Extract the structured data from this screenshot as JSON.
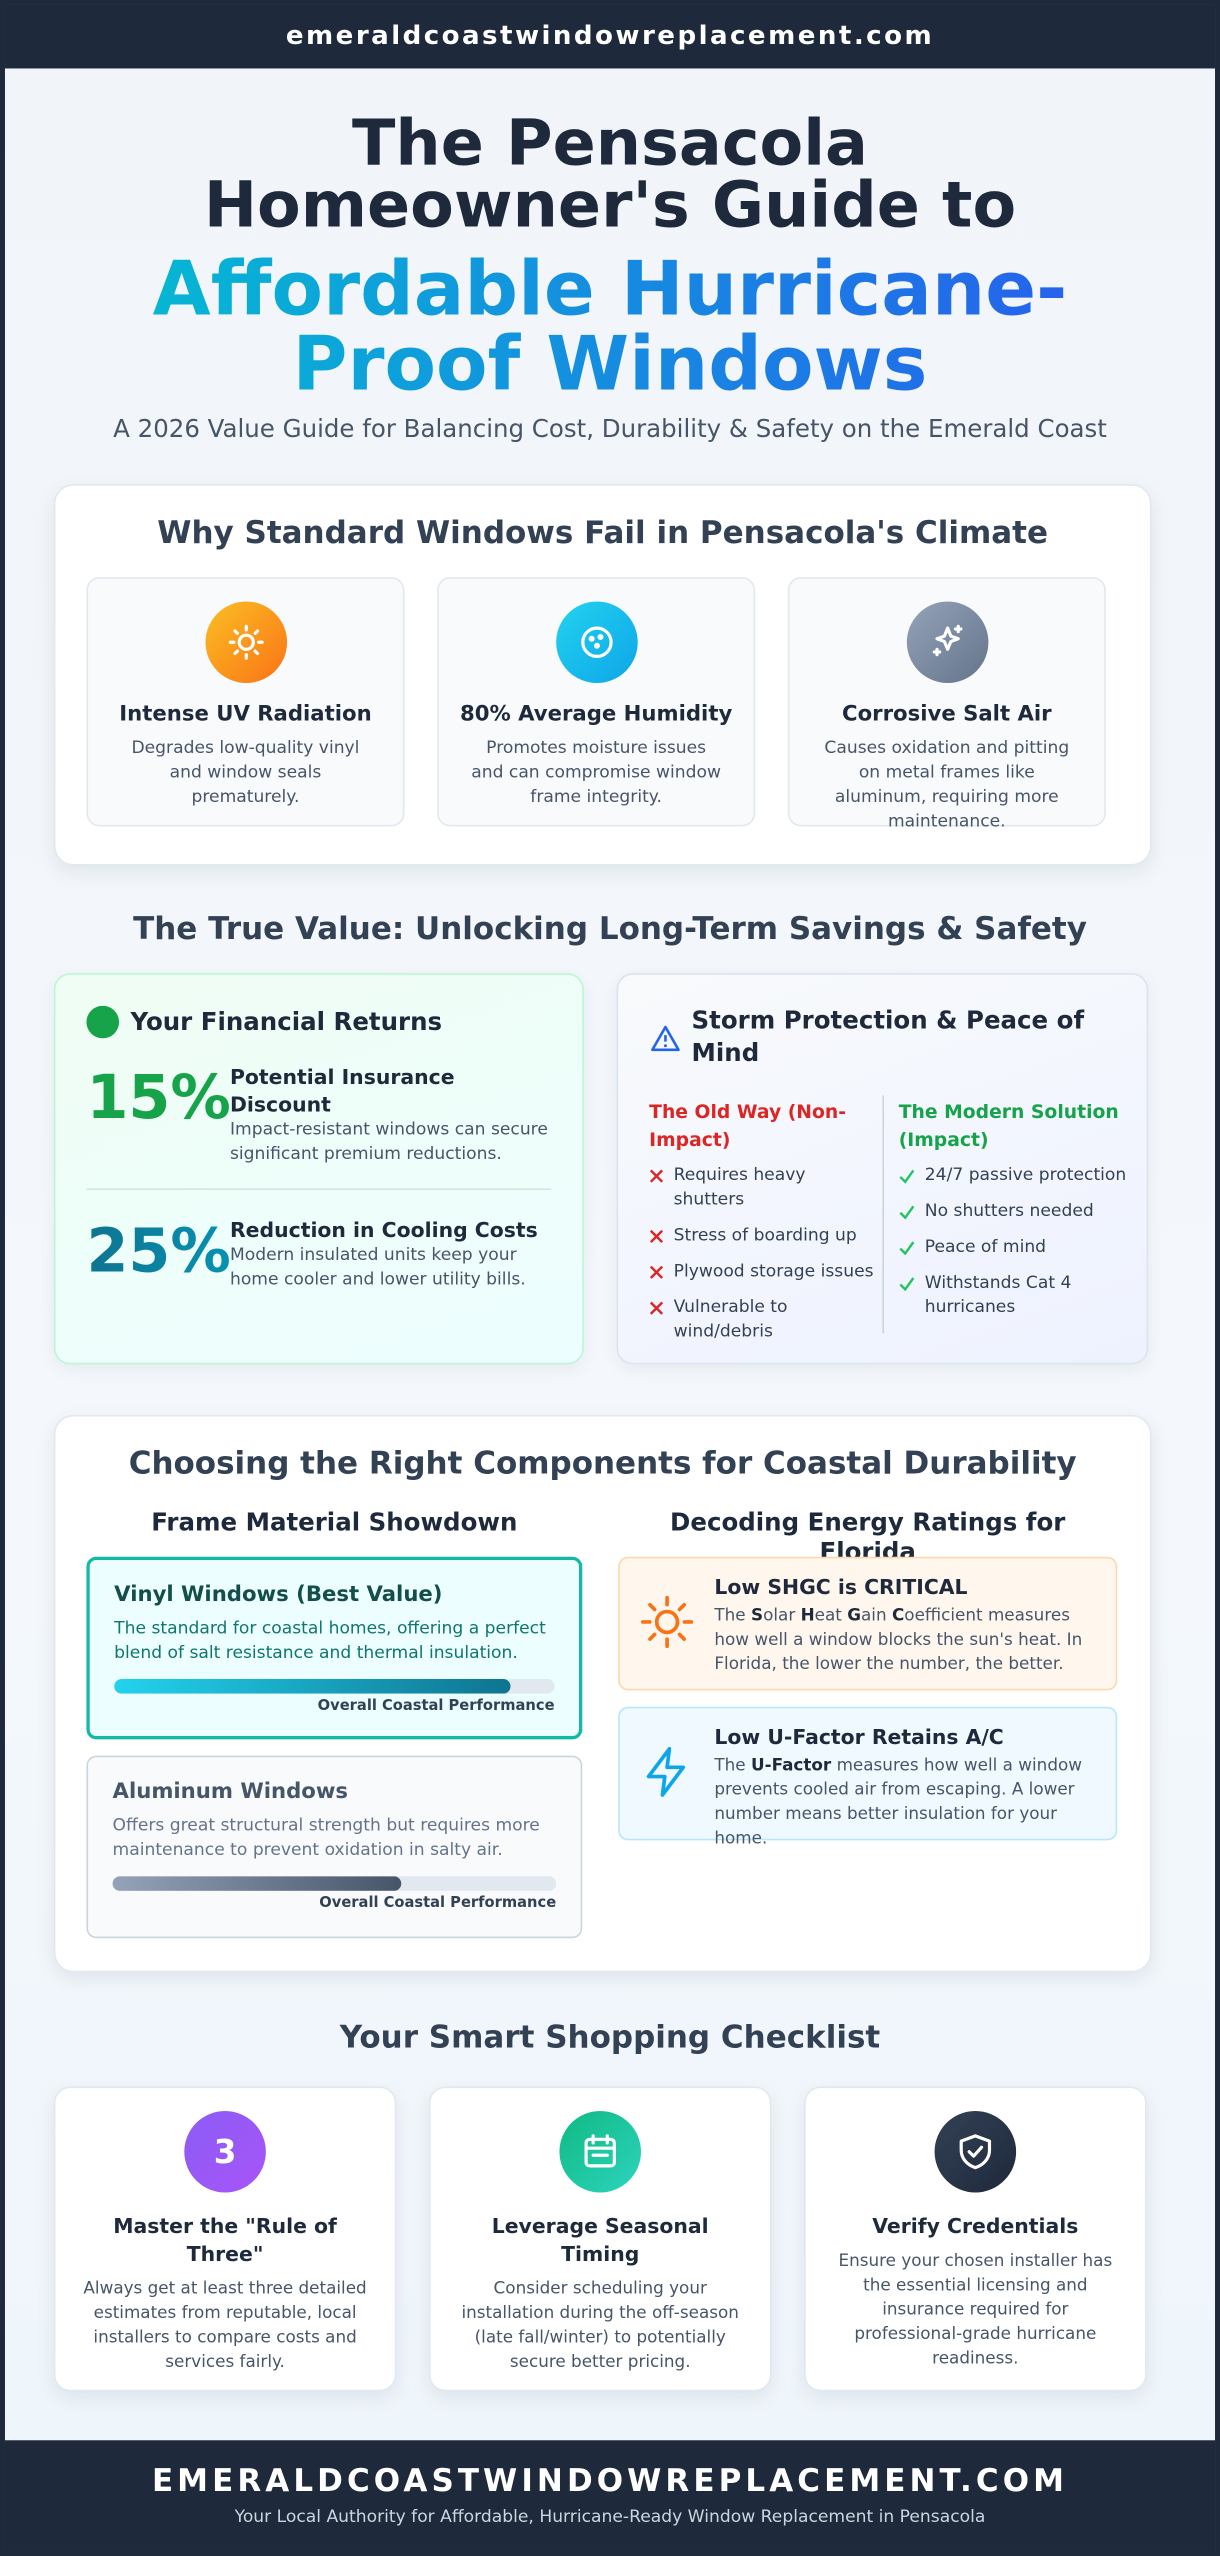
{
  "header": {
    "domain": "emeraldcoastwindowreplacement.com"
  },
  "hero": {
    "title_line1": "The Pensacola Homeowner's Guide to",
    "title_highlight": "Affordable Hurricane-Proof Windows",
    "subtitle": "A 2026 Value Guide for Balancing Cost, Durability & Safety on the Emerald Coast"
  },
  "climate": {
    "title": "Why Standard Windows Fail in Pensacola's Climate",
    "items": [
      {
        "title": "Intense UV Radiation",
        "desc": "Degrades low-quality vinyl and window seals prematurely."
      },
      {
        "title": "80% Average Humidity",
        "desc": "Promotes moisture issues and can compromise window frame integrity."
      },
      {
        "title": "Corrosive Salt Air",
        "desc": "Causes oxidation and pitting on metal frames like aluminum, requiring more maintenance."
      }
    ]
  },
  "value": {
    "title": "The True Value: Unlocking Long-Term Savings & Safety",
    "financial": {
      "title": "Your Financial Returns",
      "stats": [
        {
          "value": "15%",
          "label": "Potential Insurance Discount",
          "desc": "Impact-resistant windows can secure significant premium reductions."
        },
        {
          "value": "25%",
          "label": "Reduction in Cooling Costs",
          "desc": "Modern insulated units keep your home cooler and lower utility bills."
        }
      ]
    },
    "storm": {
      "title": "Storm Protection & Peace of Mind",
      "old": {
        "title": "The Old Way (Non-Impact)",
        "items": [
          "Requires heavy shutters",
          "Stress of boarding up",
          "Plywood storage issues",
          "Vulnerable to wind/debris"
        ]
      },
      "modern": {
        "title": "The Modern Solution (Impact)",
        "items": [
          "24/7 passive protection",
          "No shutters needed",
          "Peace of mind",
          "Withstands Cat 4 hurricanes"
        ]
      }
    }
  },
  "components": {
    "title": "Choosing the Right Components for Coastal Durability",
    "frames": {
      "title": "Frame Material Showdown",
      "items": [
        {
          "title": "Vinyl Windows (Best Value)",
          "desc": "The standard for coastal homes, offering a perfect blend of salt resistance and thermal insulation.",
          "bar_label": "Overall Coastal Performance",
          "performance": 90
        },
        {
          "title": "Aluminum Windows",
          "desc": "Offers great structural strength but requires more maintenance to prevent oxidation in salty air.",
          "bar_label": "Overall Coastal Performance",
          "performance": 65
        }
      ]
    },
    "energy": {
      "title": "Decoding Energy Ratings for Florida",
      "items": [
        {
          "title": "Low SHGC is CRITICAL",
          "desc_parts": [
            "The ",
            "S",
            "olar ",
            "H",
            "eat ",
            "G",
            "ain ",
            "C",
            "oefficient measures how well a window blocks the sun's heat. In Florida, the lower the number, the better."
          ]
        },
        {
          "title": "Low U-Factor Retains A/C",
          "desc_parts": [
            "The ",
            "U-Factor",
            " measures how well a window prevents cooled air from escaping. A lower number means better insulation for your home."
          ]
        }
      ]
    }
  },
  "checklist": {
    "title": "Your Smart Shopping Checklist",
    "items": [
      {
        "badge": "3",
        "title": "Master the \"Rule of Three\"",
        "desc": "Always get at least three detailed estimates from reputable, local installers to compare costs and services fairly."
      },
      {
        "title": "Leverage Seasonal Timing",
        "desc": "Consider scheduling your installation during the off-season (late fall/winter) to potentially secure better pricing."
      },
      {
        "title": "Verify Credentials",
        "desc": "Ensure your chosen installer has the essential licensing and insurance required for professional-grade hurricane readiness."
      }
    ]
  },
  "footer": {
    "domain": "EMERALDCOASTWINDOWREPLACEMENT.COM",
    "tagline": "Your Local Authority for Affordable, Hurricane-Ready Window Replacement in Pensacola"
  }
}
